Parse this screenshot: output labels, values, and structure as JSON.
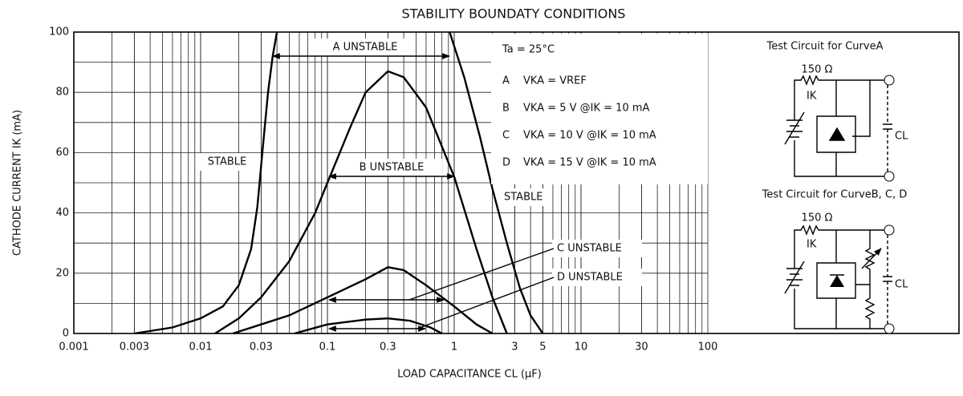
{
  "chart_data": {
    "type": "line",
    "title": "STABILITY BOUNDATY CONDITIONS",
    "x_label": "LOAD CAPACITANCE  CL  (μF)",
    "y_label": "CATHODE CURRENT  IK  (mA)",
    "log_x": true,
    "grid": true,
    "xlim": [
      0.001,
      100
    ],
    "xticks": [
      0.001,
      0.003,
      0.01,
      0.03,
      0.1,
      0.3,
      1,
      3,
      5,
      10,
      30,
      100
    ],
    "ylim": [
      0,
      100
    ],
    "yticks": [
      0,
      20,
      40,
      60,
      80,
      100
    ],
    "legend_title": "Ta = 25°C",
    "series": [
      {
        "name": "A",
        "condition": "VKA = VREF",
        "color": "#000",
        "x": [
          0.003,
          0.006,
          0.01,
          0.015,
          0.02,
          0.025,
          0.028,
          0.031,
          0.034,
          0.037,
          0.04,
          null,
          0.92,
          1.2,
          1.6,
          2.0,
          2.6,
          3.3,
          4.0,
          5.0
        ],
        "values": [
          0,
          2,
          5,
          9,
          16,
          28,
          42,
          62,
          80,
          92,
          100,
          null,
          100,
          85,
          65,
          48,
          30,
          15,
          6,
          0
        ]
      },
      {
        "name": "B",
        "condition": "VKA = 5 V   @IK = 10 mA",
        "color": "#000",
        "x": [
          0.013,
          0.02,
          0.03,
          0.05,
          0.08,
          0.1,
          0.15,
          0.2,
          0.3,
          0.4,
          0.6,
          1.0,
          1.5,
          2.0,
          2.6
        ],
        "values": [
          0,
          5,
          12,
          24,
          40,
          50,
          68,
          80,
          87,
          85,
          75,
          52,
          28,
          12,
          0
        ]
      },
      {
        "name": "C",
        "condition": "VKA = 10 V   @IK = 10 mA",
        "color": "#000",
        "x": [
          0.018,
          0.03,
          0.05,
          0.1,
          0.2,
          0.3,
          0.4,
          0.6,
          1.0,
          1.5,
          2.0
        ],
        "values": [
          0,
          3,
          6,
          12,
          18,
          22,
          21,
          16,
          9,
          3,
          0
        ]
      },
      {
        "name": "D",
        "condition": "VKA = 15 V   @IK = 10 mA",
        "color": "#000",
        "x": [
          0.055,
          0.1,
          0.2,
          0.3,
          0.45,
          0.65,
          0.8
        ],
        "values": [
          0,
          3,
          4.6,
          5,
          4.2,
          2,
          0
        ]
      }
    ],
    "annotations": {
      "stable_left": "STABLE",
      "stable_right": "STABLE",
      "a_unstable": "A  UNSTABLE",
      "b_unstable": "B  UNSTABLE",
      "c_unstable": "C UNSTABLE",
      "d_unstable": "D UNSTABLE"
    },
    "circuit_a": {
      "title": "Test Circuit for CurveA",
      "resistor": "150 Ω",
      "current": "IK",
      "capacitor": "CL"
    },
    "circuit_bcd": {
      "title": "Test Circuit for CurveB, C, D",
      "resistor": "150 Ω",
      "current": "IK",
      "capacitor": "CL"
    }
  }
}
